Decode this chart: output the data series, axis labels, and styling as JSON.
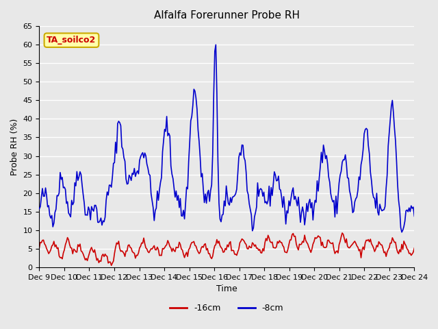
{
  "title": "Alfalfa Forerunner Probe RH",
  "ylabel": "Probe RH (%)",
  "xlabel": "Time",
  "xlim": [
    0,
    15
  ],
  "ylim": [
    0,
    65
  ],
  "yticks": [
    0,
    5,
    10,
    15,
    20,
    25,
    30,
    35,
    40,
    45,
    50,
    55,
    60,
    65
  ],
  "xtick_labels": [
    "Dec 9",
    "Dec 10",
    "Dec 11",
    "Dec 12",
    "Dec 13",
    "Dec 14",
    "Dec 15",
    "Dec 16",
    "Dec 17",
    "Dec 18",
    "Dec 19",
    "Dec 20",
    "Dec 21",
    "Dec 22",
    "Dec 23",
    "Dec 24"
  ],
  "background_color": "#e8e8e8",
  "plot_bg_color": "#e8e8e8",
  "grid_color": "#ffffff",
  "legend_label_blue": "-8cm",
  "legend_label_red": "-16cm",
  "blue_color": "#0000cc",
  "red_color": "#cc0000",
  "annotation_text": "TA_soilco2",
  "annotation_bg": "#ffffaa",
  "annotation_border": "#ccaa00"
}
